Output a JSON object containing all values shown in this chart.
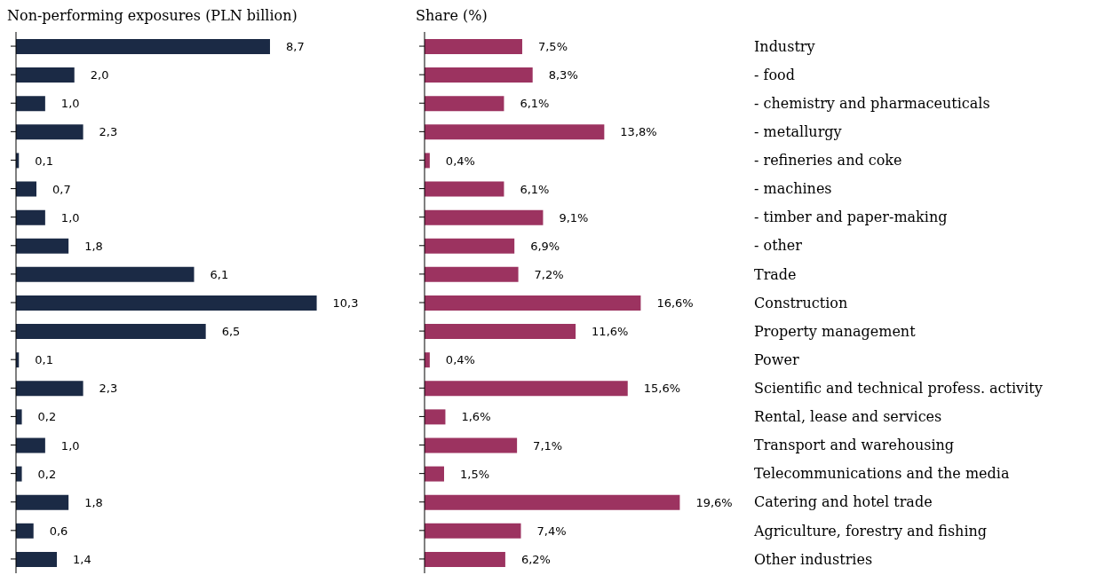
{
  "chart_data": [
    {
      "type": "bar",
      "orientation": "horizontal",
      "title": "Non-performing exposures (PLN billion)",
      "tick_labels": false,
      "color": "#1b2a45",
      "categories": [
        null,
        null,
        null,
        null,
        null,
        null,
        null,
        null,
        null,
        null,
        null,
        null,
        null,
        null,
        null,
        null,
        null,
        null,
        null
      ],
      "values": [
        8.7,
        2.0,
        1.0,
        2.3,
        0.1,
        0.7,
        1.0,
        1.8,
        6.1,
        10.3,
        6.5,
        0.1,
        2.3,
        0.2,
        1.0,
        0.2,
        1.8,
        0.6,
        1.4
      ],
      "value_labels": [
        "8,7",
        "2,0",
        "1,0",
        "2,3",
        "0,1",
        "0,7",
        "1,0",
        "1,8",
        "6,1",
        "10,3",
        "6,5",
        "0,1",
        "2,3",
        "0,2",
        "1,0",
        "0,2",
        "1,8",
        "0,6",
        "1,4"
      ]
    },
    {
      "type": "bar",
      "orientation": "horizontal",
      "title": "Share (%)",
      "tick_labels": "y",
      "color": "#9c3360",
      "categories": [
        "Industry",
        "- food",
        "- chemistry and pharmaceuticals",
        "- metallurgy",
        "- refineries and coke",
        "- machines",
        "- timber and paper-making",
        "- other",
        "Trade",
        "Construction",
        "Property management",
        "Power",
        "Scientific and technical profess. activity",
        "Rental, lease and services",
        "Transport and warehousing",
        "Telecommunications and the media",
        "Catering and hotel trade",
        "Agriculture, forestry and fishing",
        "Other industries"
      ],
      "values": [
        7.5,
        8.3,
        6.1,
        13.8,
        0.4,
        6.1,
        9.1,
        6.9,
        7.2,
        16.6,
        11.6,
        0.4,
        15.6,
        1.6,
        7.1,
        1.5,
        19.6,
        7.4,
        6.2
      ],
      "value_labels": [
        "7,5%",
        "8,3%",
        "6,1%",
        "13,8%",
        "0,4%",
        "6,1%",
        "9,1%",
        "6,9%",
        "7,2%",
        "16,6%",
        "11,6%",
        "0,4%",
        "15,6%",
        "1,6%",
        "7,1%",
        "1,5%",
        "19,6%",
        "7,4%",
        "6,2%"
      ]
    }
  ]
}
